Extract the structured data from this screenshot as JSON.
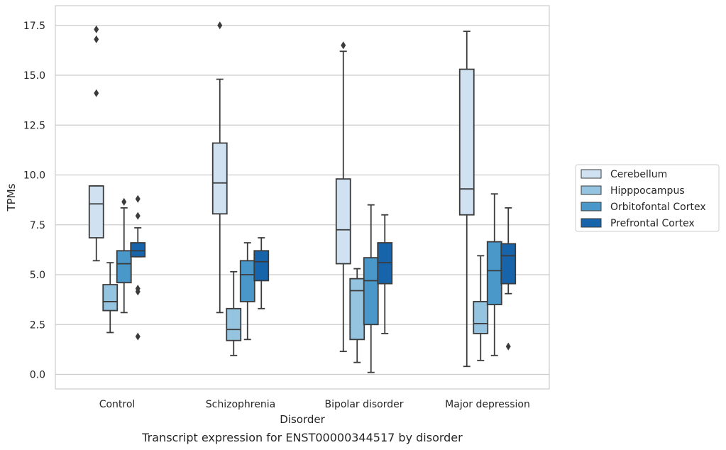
{
  "chart_data": {
    "type": "box",
    "caption": "Transcript expression for ENST00000344517 by disorder",
    "xlabel": "Disorder",
    "ylabel": "TPMs",
    "ylim": [
      -0.7,
      18.4
    ],
    "yticks": [
      0.0,
      2.5,
      5.0,
      7.5,
      10.0,
      12.5,
      15.0,
      17.5
    ],
    "ytick_labels": [
      "0.0",
      "2.5",
      "5.0",
      "7.5",
      "10.0",
      "12.5",
      "15.0",
      "17.5"
    ],
    "grid": "horizontal",
    "legend_position": "right",
    "categories": [
      "Control",
      "Schizophrenia",
      "Bipolar disorder",
      "Major depression"
    ],
    "series": [
      {
        "name": "Cerebellum",
        "color": "#d0e1f2",
        "boxes": [
          {
            "whislo": 5.7,
            "q1": 6.85,
            "med": 8.55,
            "q3": 9.45,
            "whishi": 9.45,
            "fliers": [
              14.1,
              16.8,
              17.3
            ]
          },
          {
            "whislo": 3.1,
            "q1": 8.05,
            "med": 9.6,
            "q3": 11.6,
            "whishi": 14.8,
            "fliers": [
              17.5
            ]
          },
          {
            "whislo": 1.15,
            "q1": 5.55,
            "med": 7.25,
            "q3": 9.8,
            "whishi": 16.2,
            "fliers": [
              16.5
            ]
          },
          {
            "whislo": 0.4,
            "q1": 8.0,
            "med": 9.3,
            "q3": 15.3,
            "whishi": 17.2,
            "fliers": []
          }
        ]
      },
      {
        "name": "Hipppocampus",
        "color": "#94c4df",
        "boxes": [
          {
            "whislo": 2.1,
            "q1": 3.2,
            "med": 3.65,
            "q3": 4.5,
            "whishi": 5.6,
            "fliers": []
          },
          {
            "whislo": 0.95,
            "q1": 1.7,
            "med": 2.25,
            "q3": 3.3,
            "whishi": 5.15,
            "fliers": []
          },
          {
            "whislo": 0.6,
            "q1": 1.75,
            "med": 4.2,
            "q3": 4.8,
            "whishi": 5.3,
            "fliers": []
          },
          {
            "whislo": 0.7,
            "q1": 2.05,
            "med": 2.55,
            "q3": 3.65,
            "whishi": 5.95,
            "fliers": []
          }
        ]
      },
      {
        "name": "Orbitofontal Cortex",
        "color": "#4a98c9",
        "boxes": [
          {
            "whislo": 3.1,
            "q1": 4.6,
            "med": 5.55,
            "q3": 6.2,
            "whishi": 8.35,
            "fliers": [
              8.65
            ]
          },
          {
            "whislo": 1.75,
            "q1": 3.65,
            "med": 5.0,
            "q3": 5.7,
            "whishi": 6.6,
            "fliers": []
          },
          {
            "whislo": 0.1,
            "q1": 2.5,
            "med": 4.7,
            "q3": 5.85,
            "whishi": 8.5,
            "fliers": []
          },
          {
            "whislo": 0.95,
            "q1": 3.5,
            "med": 5.2,
            "q3": 6.65,
            "whishi": 9.05,
            "fliers": []
          }
        ]
      },
      {
        "name": "Prefrontal Cortex",
        "color": "#1764ab",
        "boxes": [
          {
            "whislo": 5.9,
            "q1": 5.9,
            "med": 6.2,
            "q3": 6.6,
            "whishi": 7.35,
            "fliers": [
              1.9,
              4.15,
              4.3,
              7.95,
              8.8
            ]
          },
          {
            "whislo": 3.3,
            "q1": 4.7,
            "med": 5.65,
            "q3": 6.2,
            "whishi": 6.85,
            "fliers": []
          },
          {
            "whislo": 2.05,
            "q1": 4.55,
            "med": 5.6,
            "q3": 6.6,
            "whishi": 8.0,
            "fliers": []
          },
          {
            "whislo": 4.05,
            "q1": 4.55,
            "med": 5.95,
            "q3": 6.55,
            "whishi": 8.35,
            "fliers": [
              1.4
            ]
          }
        ]
      }
    ]
  }
}
